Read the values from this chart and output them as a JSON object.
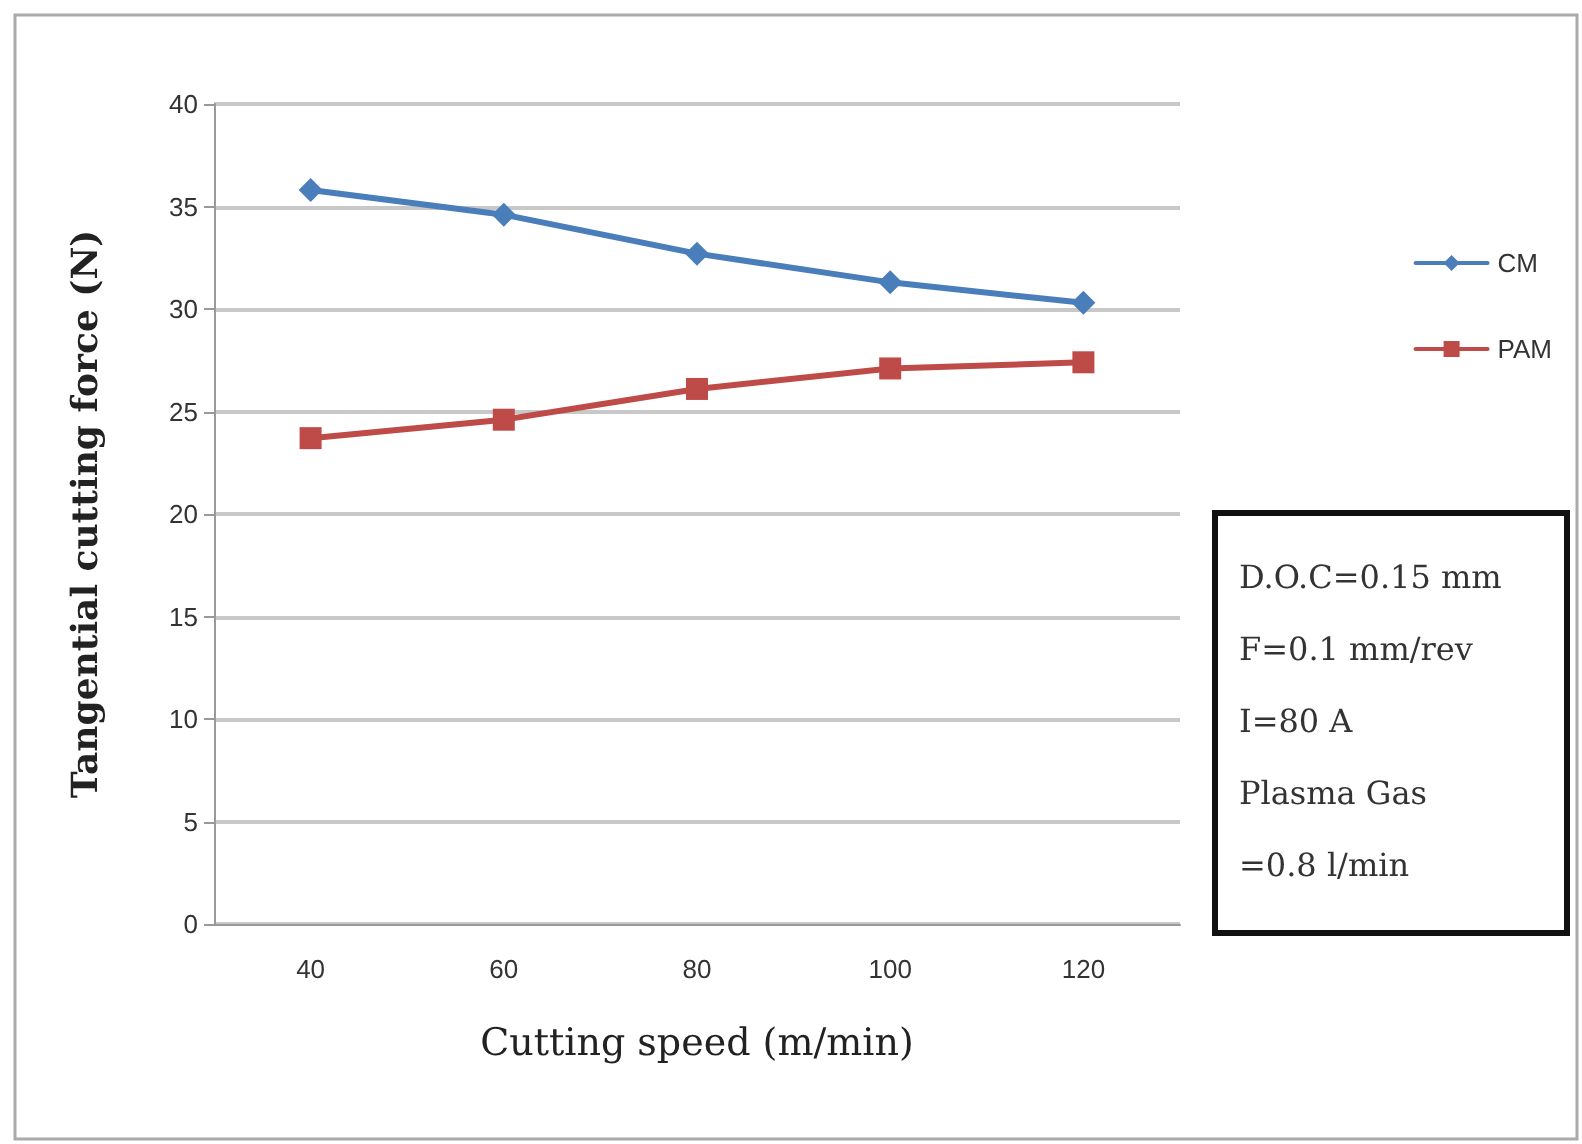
{
  "chart_data": {
    "type": "line",
    "xlabel": "Cutting speed (m/min)",
    "ylabel": "Tangential cutting force (N)",
    "categories": [
      "40",
      "60",
      "80",
      "100",
      "120"
    ],
    "series": [
      {
        "name": "CM",
        "color": "#4a7ebb",
        "values": [
          35.8,
          34.6,
          32.7,
          31.3,
          30.3
        ],
        "marker": "diamond"
      },
      {
        "name": "PAM",
        "color": "#be4b48",
        "values": [
          23.7,
          24.6,
          26.1,
          27.1,
          27.4
        ],
        "marker": "square"
      }
    ],
    "ylim": [
      0,
      40
    ],
    "yticks": [
      0,
      5,
      10,
      15,
      20,
      25,
      30,
      35,
      40
    ],
    "grid": "y",
    "legend": "right",
    "line_style": "solid",
    "annotations": [
      "D.O.C=0.15 mm\nF=0.1 mm/rev\nI=80 A\nPlasma Gas\n=0.8 l/min"
    ]
  }
}
